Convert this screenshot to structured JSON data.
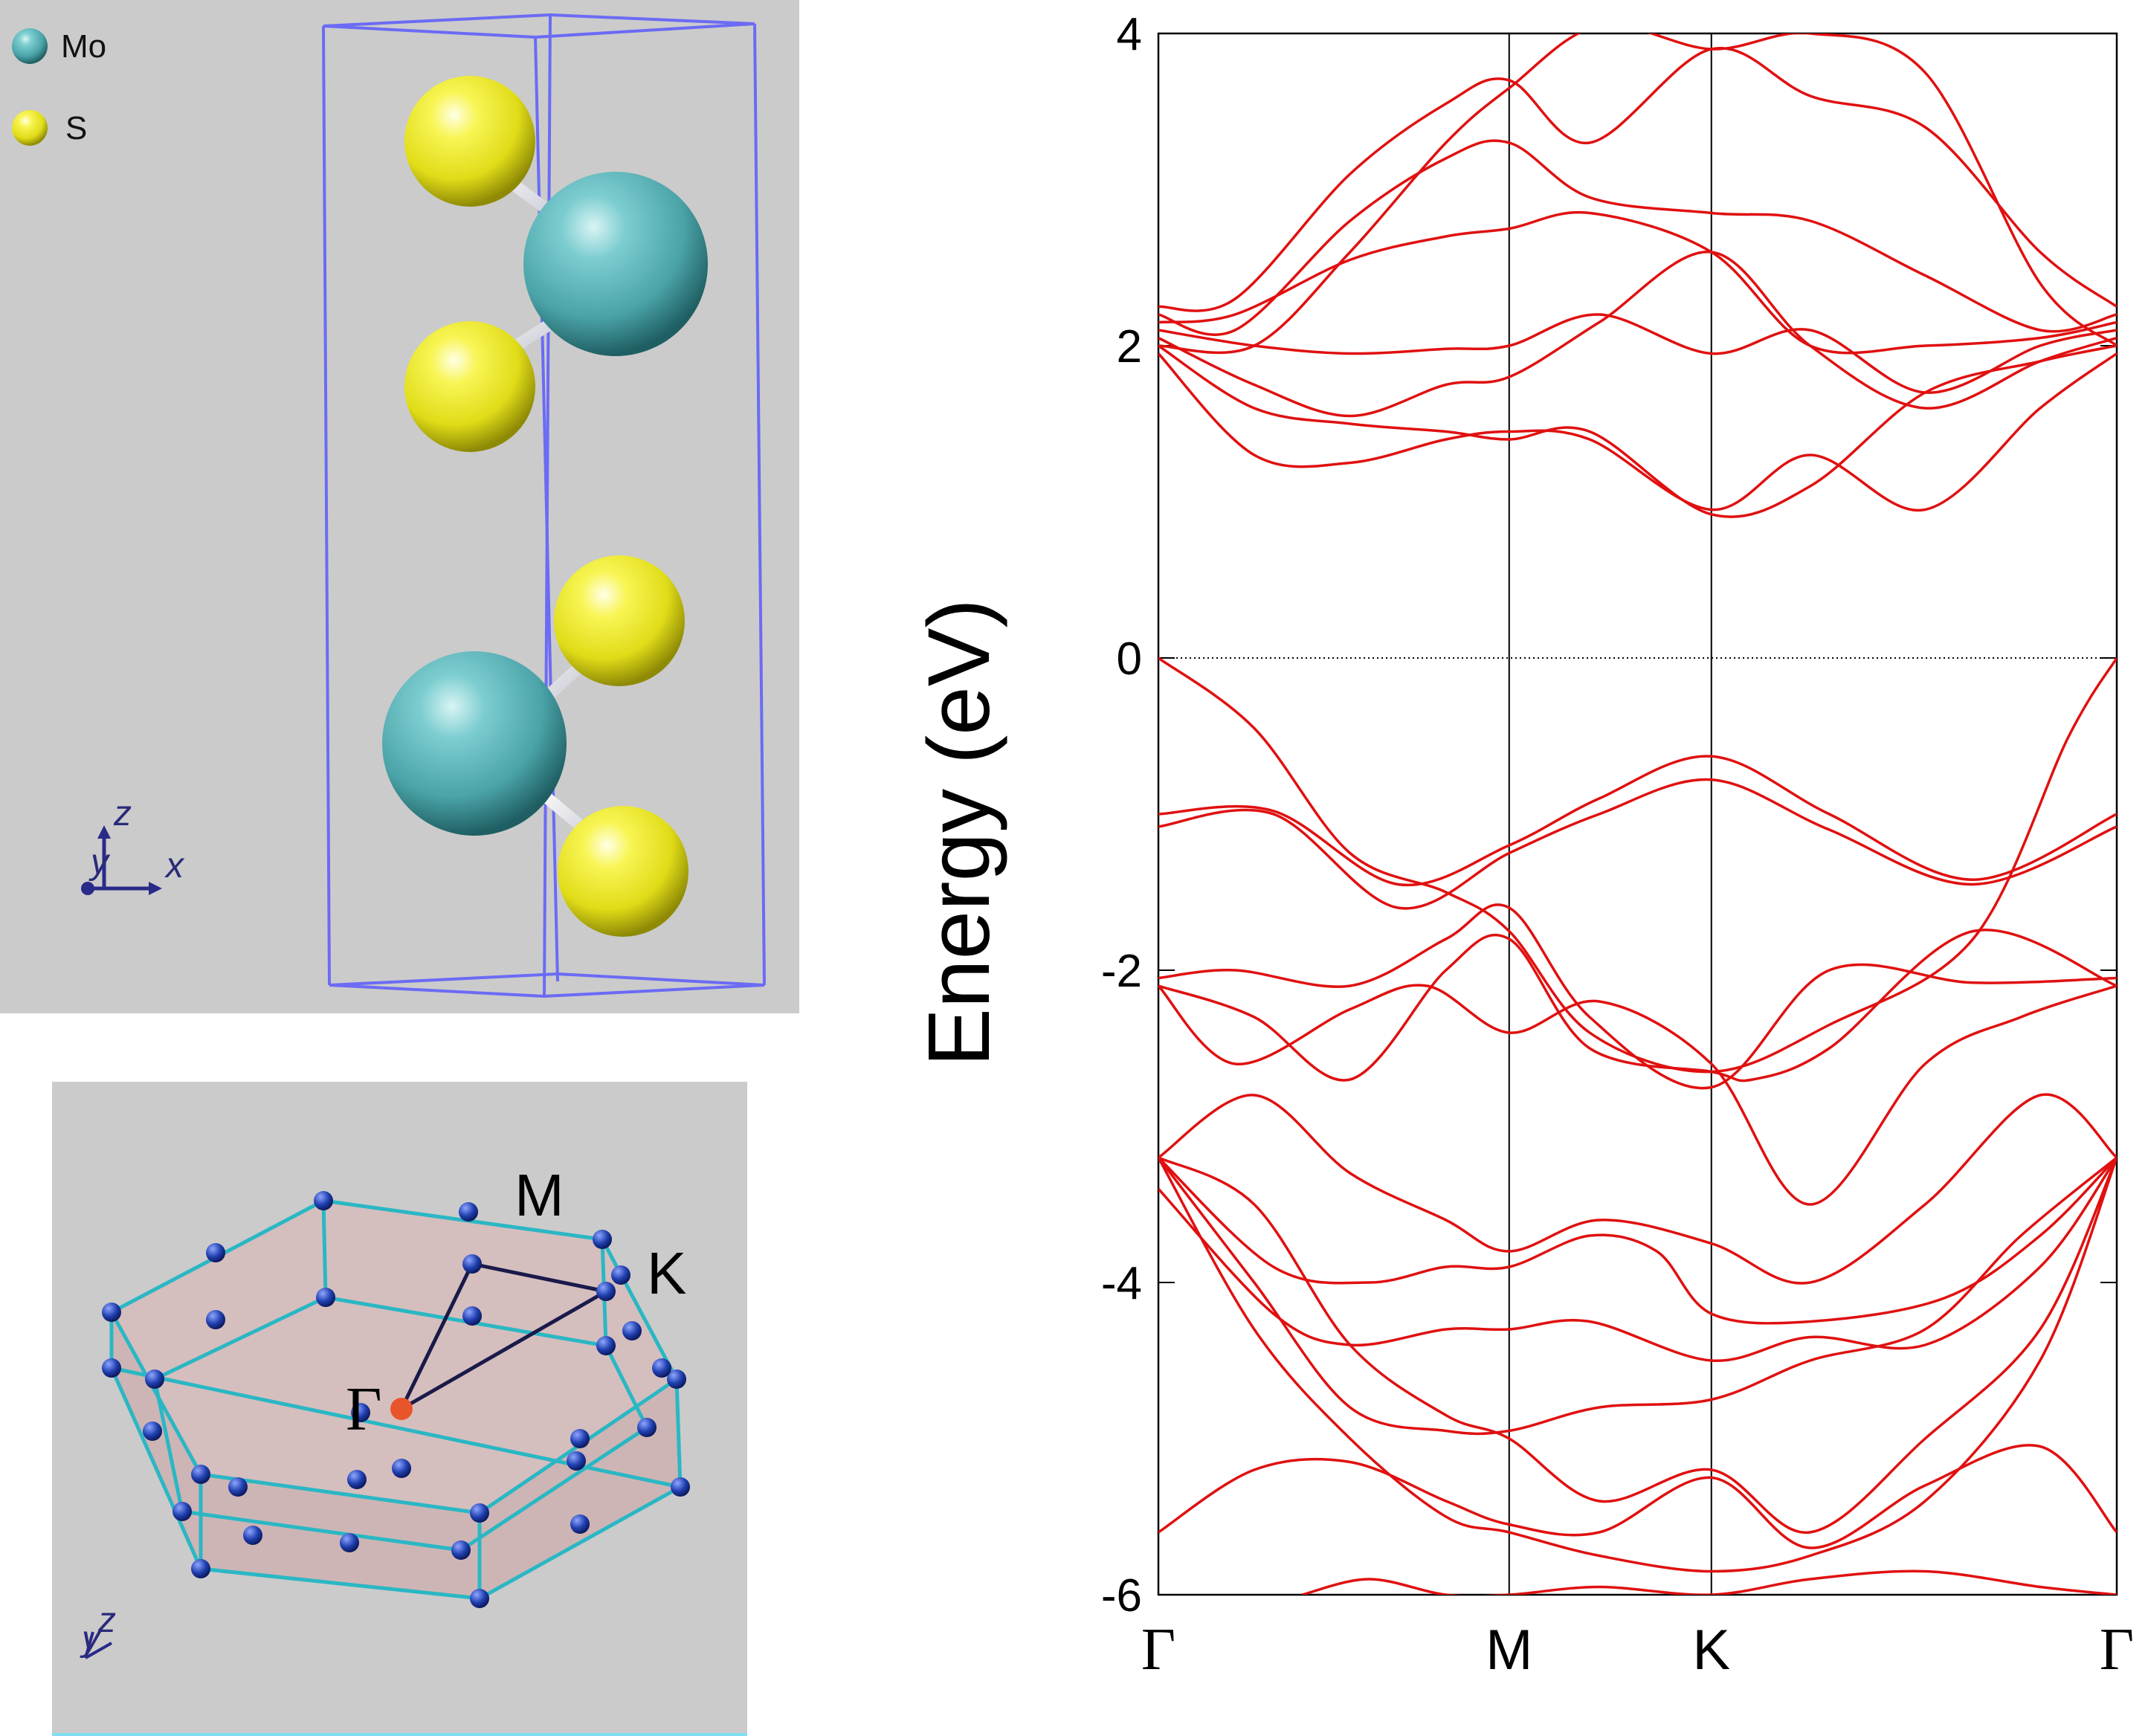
{
  "crystal": {
    "legend": [
      {
        "label": "Mo",
        "color": "#5ab8bb"
      },
      {
        "label": "S",
        "color": "#f0ef30"
      }
    ],
    "axes": {
      "z": "z",
      "y": "y",
      "x": "x"
    },
    "cell_color": "#6b6bf5"
  },
  "brillouin_zone": {
    "labels": {
      "gamma": "Γ",
      "m": "M",
      "k": "K"
    },
    "axes": {
      "z": "z",
      "y": "y"
    },
    "edge_color": "#2ab7c4",
    "point_color": "#1f3a9e",
    "gamma_color": "#e8552a",
    "face_color": "#d4b9b9"
  },
  "chart_data": {
    "type": "line",
    "title": "",
    "xlabel": "",
    "ylabel": "Energy (eV)",
    "ylim": [
      -6,
      4
    ],
    "yticks": [
      {
        "value": 4,
        "label": "4"
      },
      {
        "value": 2,
        "label": "2"
      },
      {
        "value": 0,
        "label": "0"
      },
      {
        "value": -2,
        "label": "-2"
      },
      {
        "value": -4,
        "label": "-4"
      },
      {
        "value": -6,
        "label": "-6"
      }
    ],
    "kpoints": [
      {
        "label": "Γ",
        "pos": 0.0,
        "serif": true
      },
      {
        "label": "M",
        "pos": 0.366,
        "serif": false
      },
      {
        "label": "K",
        "pos": 0.577,
        "serif": false
      },
      {
        "label": "Γ",
        "pos": 1.0,
        "serif": true
      }
    ],
    "fermi_level": 0,
    "line_color": "#e01010",
    "bands": [
      {
        "x": [
          0,
          0.12,
          0.25,
          0.366,
          0.46,
          0.577,
          0.7,
          0.85,
          1.0
        ],
        "y": [
          -1.0,
          -0.98,
          -1.45,
          -1.2,
          -0.9,
          -0.63,
          -1.0,
          -1.42,
          -1.0
        ]
      },
      {
        "x": [
          0,
          0.12,
          0.25,
          0.366,
          0.46,
          0.577,
          0.7,
          0.85,
          1.0
        ],
        "y": [
          -1.08,
          -1.0,
          -1.6,
          -1.25,
          -1.0,
          -0.78,
          -1.1,
          -1.45,
          -1.08
        ]
      },
      {
        "x": [
          0,
          0.1,
          0.2,
          0.3,
          0.366,
          0.45,
          0.577,
          0.7,
          0.85,
          0.95,
          1.0
        ],
        "y": [
          0.0,
          -0.45,
          -1.25,
          -1.5,
          -1.75,
          -2.4,
          -2.65,
          -2.35,
          -1.8,
          -0.5,
          0.0
        ]
      },
      {
        "x": [
          0,
          0.08,
          0.2,
          0.3,
          0.366,
          0.45,
          0.577,
          0.7,
          0.85,
          1.0
        ],
        "y": [
          -2.05,
          -2.0,
          -2.1,
          -1.8,
          -1.6,
          -2.3,
          -2.75,
          -2.0,
          -2.08,
          -2.05
        ]
      },
      {
        "x": [
          0,
          0.1,
          0.2,
          0.3,
          0.366,
          0.45,
          0.577,
          0.62,
          0.7,
          0.85,
          1.0
        ],
        "y": [
          -2.1,
          -2.3,
          -2.7,
          -2.0,
          -1.8,
          -2.5,
          -2.65,
          -2.7,
          -2.5,
          -1.75,
          -2.1
        ]
      },
      {
        "x": [
          0,
          0.08,
          0.2,
          0.28,
          0.366,
          0.46,
          0.577,
          0.68,
          0.8,
          0.9,
          1.0
        ],
        "y": [
          -2.1,
          -2.6,
          -2.25,
          -2.1,
          -2.4,
          -2.2,
          -2.6,
          -3.5,
          -2.6,
          -2.3,
          -2.1
        ]
      },
      {
        "x": [
          0,
          0.1,
          0.2,
          0.3,
          0.366,
          0.46,
          0.577,
          0.68,
          0.8,
          0.92,
          1.0
        ],
        "y": [
          -3.2,
          -2.8,
          -3.3,
          -3.6,
          -3.8,
          -3.6,
          -3.75,
          -4.0,
          -3.5,
          -2.8,
          -3.2
        ]
      },
      {
        "x": [
          0,
          0.12,
          0.22,
          0.3,
          0.366,
          0.45,
          0.52,
          0.577,
          0.68,
          0.82,
          0.92,
          1.0
        ],
        "y": [
          -3.2,
          -3.9,
          -4.0,
          -3.9,
          -3.9,
          -3.7,
          -3.8,
          -4.2,
          -4.25,
          -4.1,
          -3.7,
          -3.2
        ]
      },
      {
        "x": [
          0,
          0.12,
          0.2,
          0.3,
          0.366,
          0.45,
          0.577,
          0.68,
          0.8,
          0.92,
          1.0
        ],
        "y": [
          -3.4,
          -4.2,
          -4.4,
          -4.3,
          -4.3,
          -4.25,
          -4.5,
          -4.35,
          -4.4,
          -3.9,
          -3.2
        ]
      },
      {
        "x": [
          0,
          0.1,
          0.2,
          0.3,
          0.366,
          0.46,
          0.577,
          0.68,
          0.8,
          0.9,
          1.0
        ],
        "y": [
          -3.2,
          -4.0,
          -4.8,
          -4.95,
          -4.95,
          -4.8,
          -4.75,
          -4.5,
          -4.3,
          -3.7,
          -3.2
        ]
      },
      {
        "x": [
          0,
          0.1,
          0.2,
          0.3,
          0.366,
          0.46,
          0.577,
          0.68,
          0.8,
          0.92,
          1.0
        ],
        "y": [
          -5.6,
          -5.2,
          -5.15,
          -5.4,
          -5.55,
          -5.6,
          -5.25,
          -5.7,
          -5.3,
          -5.05,
          -5.6
        ]
      },
      {
        "x": [
          0,
          0.1,
          0.2,
          0.3,
          0.366,
          0.46,
          0.577,
          0.68,
          0.8,
          0.92,
          1.0
        ],
        "y": [
          -3.2,
          -4.3,
          -5.0,
          -5.5,
          -5.6,
          -5.75,
          -5.85,
          -5.75,
          -5.4,
          -4.5,
          -3.2
        ]
      },
      {
        "x": [
          0,
          0.1,
          0.2,
          0.3,
          0.366,
          0.46,
          0.577,
          0.68,
          0.8,
          0.92,
          1.0
        ],
        "y": [
          -3.2,
          -3.5,
          -4.4,
          -4.85,
          -5.0,
          -5.4,
          -5.2,
          -5.6,
          -5.0,
          -4.3,
          -3.2
        ]
      },
      {
        "x": [
          0.15,
          0.22,
          0.3,
          0.366,
          0.46,
          0.577,
          0.68,
          0.8,
          0.92,
          1.0
        ],
        "y": [
          -6.0,
          -5.9,
          -6.0,
          -6.0,
          -5.95,
          -6.0,
          -5.9,
          -5.85,
          -5.95,
          -6.0
        ]
      },
      {
        "x": [
          0,
          0.1,
          0.2,
          0.3,
          0.366,
          0.45,
          0.577,
          0.68,
          0.8,
          0.92,
          1.0
        ],
        "y": [
          1.95,
          1.3,
          1.25,
          1.4,
          1.45,
          1.4,
          0.95,
          1.3,
          0.95,
          1.6,
          1.95
        ]
      },
      {
        "x": [
          0,
          0.1,
          0.2,
          0.3,
          0.366,
          0.45,
          0.577,
          0.68,
          0.8,
          0.92,
          1.0
        ],
        "y": [
          2.0,
          1.6,
          1.5,
          1.45,
          1.4,
          1.45,
          0.92,
          1.1,
          1.7,
          1.9,
          2.0
        ]
      },
      {
        "x": [
          0,
          0.1,
          0.2,
          0.3,
          0.366,
          0.46,
          0.577,
          0.68,
          0.8,
          0.92,
          1.0
        ],
        "y": [
          2.05,
          1.75,
          1.55,
          1.75,
          1.8,
          2.15,
          2.6,
          2.0,
          1.6,
          1.9,
          2.05
        ]
      },
      {
        "x": [
          0,
          0.1,
          0.2,
          0.3,
          0.366,
          0.46,
          0.577,
          0.68,
          0.8,
          0.92,
          1.0
        ],
        "y": [
          2.1,
          2.0,
          1.95,
          1.98,
          2.0,
          2.2,
          1.95,
          2.1,
          1.7,
          2.0,
          2.1
        ]
      },
      {
        "x": [
          0,
          0.08,
          0.2,
          0.3,
          0.366,
          0.45,
          0.577,
          0.68,
          0.8,
          0.92,
          1.0
        ],
        "y": [
          2.15,
          2.2,
          2.55,
          2.7,
          2.75,
          2.85,
          2.6,
          2.0,
          2.0,
          2.05,
          2.15
        ]
      },
      {
        "x": [
          0,
          0.08,
          0.2,
          0.3,
          0.366,
          0.45,
          0.577,
          0.68,
          0.8,
          0.92,
          1.0
        ],
        "y": [
          2.2,
          2.1,
          2.8,
          3.2,
          3.3,
          2.95,
          2.85,
          2.8,
          2.45,
          2.1,
          2.2
        ]
      },
      {
        "x": [
          0,
          0.08,
          0.2,
          0.3,
          0.366,
          0.45,
          0.577,
          0.68,
          0.8,
          0.92,
          1.0
        ],
        "y": [
          2.25,
          2.3,
          3.1,
          3.55,
          3.7,
          3.3,
          3.9,
          3.6,
          3.4,
          2.6,
          2.25
        ]
      },
      {
        "x": [
          0,
          0.1,
          0.2,
          0.3,
          0.366,
          0.46,
          0.577,
          0.68,
          0.8,
          0.92,
          1.0
        ],
        "y": [
          2.0,
          2.0,
          2.6,
          3.3,
          3.65,
          4.05,
          3.9,
          4.0,
          3.75,
          2.4,
          2.0
        ]
      }
    ]
  }
}
